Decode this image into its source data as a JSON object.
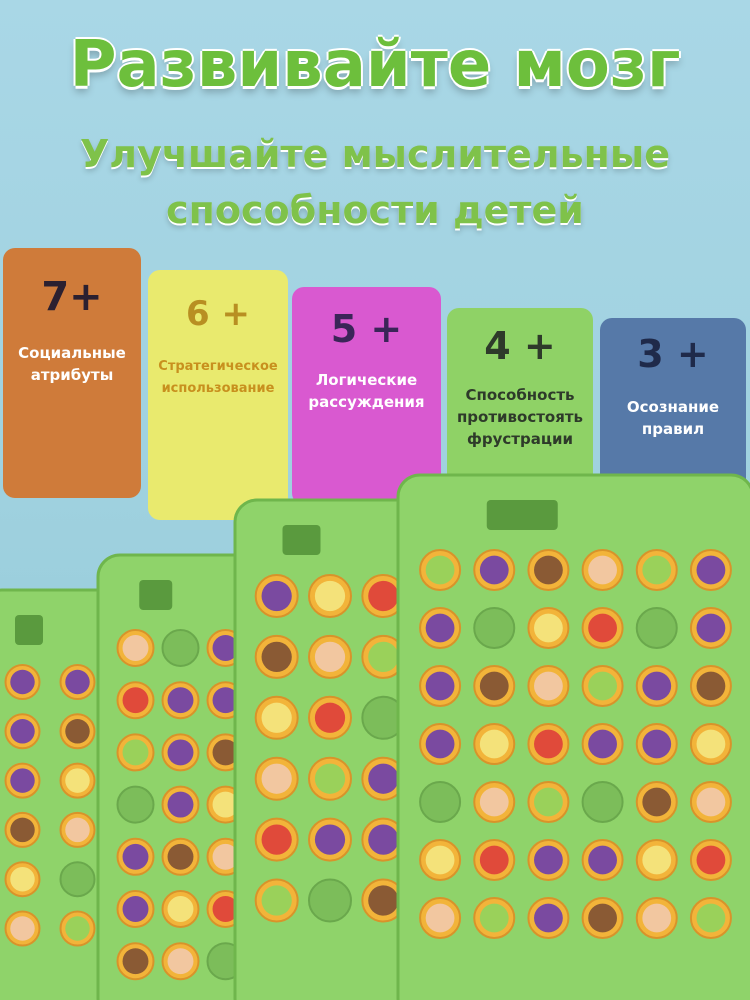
{
  "header": {
    "title": "Развивайте мозг",
    "subtitle": [
      "Улучшайте мыслительные",
      "способности детей"
    ]
  },
  "cards": [
    {
      "age": "7+",
      "label": [
        "Социальные",
        "атрибуты"
      ]
    },
    {
      "age": "6 +",
      "label": [
        "Стратегическое",
        "использование"
      ]
    },
    {
      "age": "5 +",
      "label": [
        "Логические",
        "рассуждения"
      ]
    },
    {
      "age": "4 +",
      "label": [
        "Способность",
        "противостоять",
        "фрустрации"
      ]
    },
    {
      "age": "3 +",
      "label": [
        "Осознание",
        "правил"
      ]
    }
  ]
}
